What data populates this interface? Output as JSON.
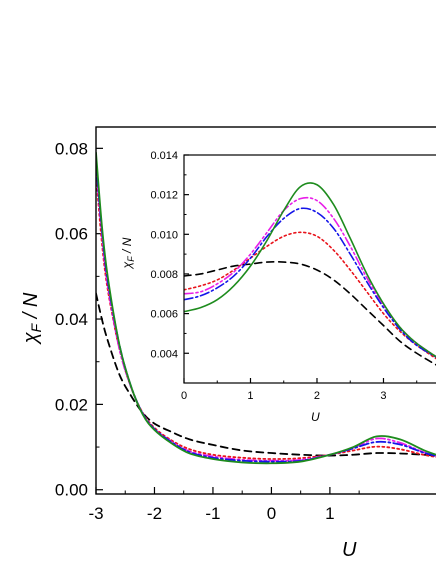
{
  "chart_data": [
    {
      "type": "line",
      "role": "main",
      "xlabel": "U",
      "ylabel_symbol": "χ",
      "ylabel_subscript": "F",
      "ylabel_rest": " / N",
      "xlim": [
        -3,
        2.9
      ],
      "ylim": [
        -0.001,
        0.085
      ],
      "xticks": [
        -3,
        -2,
        -1,
        0,
        1
      ],
      "xtick_labels": [
        "-3",
        "-2",
        "-1",
        "0",
        "1"
      ],
      "yticks": [
        0.0,
        0.02,
        0.04,
        0.06,
        0.08
      ],
      "ytick_labels": [
        "0.00",
        "0.02",
        "0.04",
        "0.06",
        "0.08"
      ],
      "series": [
        {
          "style": "dashed",
          "color": "#000000",
          "x": [
            -3,
            -2.9,
            -2.8,
            -2.6,
            -2.4,
            -2.2,
            -2.0,
            -1.7,
            -1.4,
            -1.0,
            -0.5,
            0,
            0.5,
            1.0,
            1.4,
            1.8,
            2.2,
            2.6,
            2.9
          ],
          "y": [
            0.046,
            0.04,
            0.035,
            0.027,
            0.022,
            0.018,
            0.0155,
            0.0135,
            0.0118,
            0.0105,
            0.0092,
            0.0086,
            0.0082,
            0.008,
            0.0082,
            0.0086,
            0.0085,
            0.0082,
            0.0079
          ]
        },
        {
          "style": "dotted",
          "color": "#e8141c",
          "x": [
            -3,
            -2.9,
            -2.8,
            -2.6,
            -2.4,
            -2.2,
            -2.0,
            -1.7,
            -1.4,
            -1.0,
            -0.5,
            0,
            0.5,
            1.0,
            1.4,
            1.8,
            2.2,
            2.6,
            2.9
          ],
          "y": [
            0.074,
            0.058,
            0.047,
            0.033,
            0.024,
            0.018,
            0.0145,
            0.0115,
            0.0095,
            0.0082,
            0.0075,
            0.0072,
            0.0074,
            0.0082,
            0.0092,
            0.0101,
            0.0095,
            0.0082,
            0.0075
          ]
        },
        {
          "style": "dashdotdot",
          "color": "#e81ee8",
          "x": [
            -3,
            -2.9,
            -2.8,
            -2.6,
            -2.4,
            -2.2,
            -2.0,
            -1.7,
            -1.4,
            -1.0,
            -0.5,
            0,
            0.5,
            1.0,
            1.4,
            1.8,
            2.2,
            2.6,
            2.9
          ],
          "y": [
            0.076,
            0.06,
            0.048,
            0.033,
            0.024,
            0.0178,
            0.0142,
            0.0112,
            0.009,
            0.0078,
            0.007,
            0.0068,
            0.007,
            0.0082,
            0.0098,
            0.012,
            0.011,
            0.0088,
            0.0077
          ]
        },
        {
          "style": "dashdot",
          "color": "#1414e8",
          "x": [
            -3,
            -2.9,
            -2.8,
            -2.6,
            -2.4,
            -2.2,
            -2.0,
            -1.7,
            -1.4,
            -1.0,
            -0.5,
            0,
            0.5,
            1.0,
            1.4,
            1.8,
            2.2,
            2.6,
            2.9
          ],
          "y": [
            0.077,
            0.061,
            0.049,
            0.034,
            0.0242,
            0.0178,
            0.0142,
            0.0111,
            0.0088,
            0.0075,
            0.0068,
            0.0066,
            0.0068,
            0.0082,
            0.0097,
            0.0112,
            0.0106,
            0.0087,
            0.0076
          ]
        },
        {
          "style": "solid",
          "color": "#1e8c1e",
          "x": [
            -3,
            -2.9,
            -2.8,
            -2.6,
            -2.4,
            -2.2,
            -2.0,
            -1.7,
            -1.4,
            -1.0,
            -0.5,
            0,
            0.5,
            1.0,
            1.4,
            1.8,
            2.2,
            2.6,
            2.9
          ],
          "y": [
            0.079,
            0.062,
            0.05,
            0.034,
            0.0242,
            0.0176,
            0.014,
            0.0108,
            0.0085,
            0.0072,
            0.0064,
            0.0062,
            0.0066,
            0.0082,
            0.01,
            0.0125,
            0.0118,
            0.0093,
            0.0078
          ]
        }
      ]
    },
    {
      "type": "line",
      "role": "inset",
      "xlabel": "U",
      "ylabel_symbol": "χ",
      "ylabel_subscript": "F",
      "ylabel_rest": " / N",
      "xlim": [
        0,
        3.85
      ],
      "ylim": [
        0.0025,
        0.014
      ],
      "xticks": [
        0,
        1,
        2,
        3
      ],
      "xtick_labels": [
        "0",
        "1",
        "2",
        "3"
      ],
      "yticks": [
        0.004,
        0.006,
        0.008,
        0.01,
        0.012,
        0.014
      ],
      "ytick_labels": [
        "0.004",
        "0.006",
        "0.008",
        "0.010",
        "0.012",
        "0.014"
      ],
      "series": [
        {
          "style": "dashed",
          "color": "#000000",
          "x": [
            0,
            0.25,
            0.5,
            0.75,
            1.0,
            1.25,
            1.5,
            1.75,
            2.0,
            2.25,
            2.5,
            2.75,
            3.0,
            3.25,
            3.5,
            3.85
          ],
          "y": [
            0.0079,
            0.008,
            0.0082,
            0.0084,
            0.0085,
            0.0086,
            0.0086,
            0.0085,
            0.0082,
            0.0077,
            0.007,
            0.0062,
            0.0054,
            0.0046,
            0.004,
            0.0033
          ]
        },
        {
          "style": "dotted",
          "color": "#e8141c",
          "x": [
            0,
            0.25,
            0.5,
            0.75,
            1.0,
            1.25,
            1.5,
            1.75,
            2.0,
            2.25,
            2.5,
            2.75,
            3.0,
            3.25,
            3.5,
            3.85
          ],
          "y": [
            0.0072,
            0.0074,
            0.0077,
            0.0082,
            0.0088,
            0.0094,
            0.0099,
            0.0101,
            0.0099,
            0.0092,
            0.0082,
            0.0071,
            0.006,
            0.0051,
            0.0044,
            0.0036
          ]
        },
        {
          "style": "dashdotdot",
          "color": "#e81ee8",
          "x": [
            0,
            0.25,
            0.5,
            0.75,
            1.0,
            1.25,
            1.5,
            1.75,
            2.0,
            2.25,
            2.5,
            2.75,
            3.0,
            3.25,
            3.5,
            3.85
          ],
          "y": [
            0.007,
            0.0071,
            0.0075,
            0.0081,
            0.009,
            0.0101,
            0.0112,
            0.0118,
            0.0117,
            0.0108,
            0.0094,
            0.0078,
            0.0064,
            0.0053,
            0.0045,
            0.0037
          ]
        },
        {
          "style": "dashdot",
          "color": "#1414e8",
          "x": [
            0,
            0.25,
            0.5,
            0.75,
            1.0,
            1.25,
            1.5,
            1.75,
            2.0,
            2.25,
            2.5,
            2.75,
            3.0,
            3.25,
            3.5,
            3.85
          ],
          "y": [
            0.0067,
            0.0069,
            0.0073,
            0.0079,
            0.0088,
            0.0099,
            0.0108,
            0.0113,
            0.0111,
            0.0103,
            0.009,
            0.0076,
            0.0063,
            0.0052,
            0.0044,
            0.0037
          ]
        },
        {
          "style": "solid",
          "color": "#1e8c1e",
          "x": [
            0,
            0.25,
            0.5,
            0.75,
            1.0,
            1.25,
            1.5,
            1.75,
            2.0,
            2.25,
            2.5,
            2.75,
            3.0,
            3.25,
            3.5,
            3.85
          ],
          "y": [
            0.0061,
            0.0063,
            0.0067,
            0.0074,
            0.0084,
            0.0097,
            0.0112,
            0.0124,
            0.0125,
            0.0115,
            0.0098,
            0.008,
            0.0065,
            0.0053,
            0.0045,
            0.0037
          ]
        }
      ]
    }
  ]
}
